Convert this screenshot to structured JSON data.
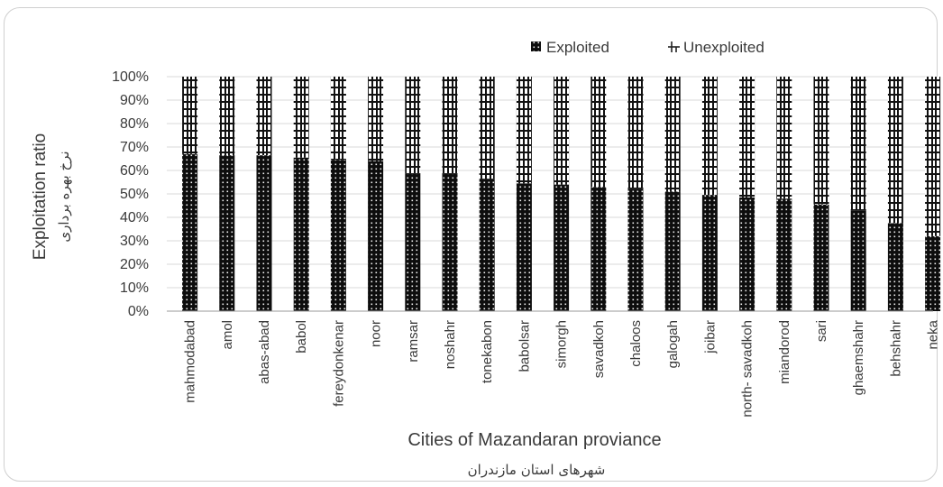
{
  "chart_data": {
    "type": "bar",
    "stacked": "percent",
    "categories": [
      "mahmodabad",
      "amol",
      "abas-abad",
      "babol",
      "fereydonkenar",
      "noor",
      "ramsar",
      "noshahr",
      "tonekabon",
      "babolsar",
      "simorgh",
      "savadkoh",
      "chaloos",
      "galogah",
      "joibar",
      "north- savadkoh",
      "miandorod",
      "sari",
      "ghaemshahr",
      "behshahr",
      "neka"
    ],
    "series": [
      {
        "name": "Exploited",
        "values": [
          67,
          66.5,
          66.5,
          65.5,
          64.5,
          64,
          58.5,
          58.5,
          56.5,
          54.5,
          54,
          53,
          52,
          51,
          49.5,
          48.5,
          48,
          45.5,
          43,
          37.5,
          32
        ]
      },
      {
        "name": "Unexploited",
        "values": [
          33,
          33.5,
          33.5,
          34.5,
          35.5,
          36,
          41.5,
          41.5,
          43.5,
          45.5,
          46,
          47,
          48,
          49,
          50.5,
          51.5,
          52,
          54.5,
          57,
          62.5,
          68
        ]
      }
    ],
    "yticks": [
      "0%",
      "10%",
      "20%",
      "30%",
      "40%",
      "50%",
      "60%",
      "70%",
      "80%",
      "90%",
      "100%"
    ],
    "ylim": [
      0,
      100
    ],
    "ylabel": "Exploitation ratio",
    "ylabel_sub": "نرخ بهره برداری",
    "xlabel": "Cities of Mazandaran proviance",
    "xlabel_sub": "شهرهای استان مازندران",
    "legend": [
      "Exploited",
      "Unexploited"
    ],
    "legend_position": "top-right",
    "grid": true
  }
}
